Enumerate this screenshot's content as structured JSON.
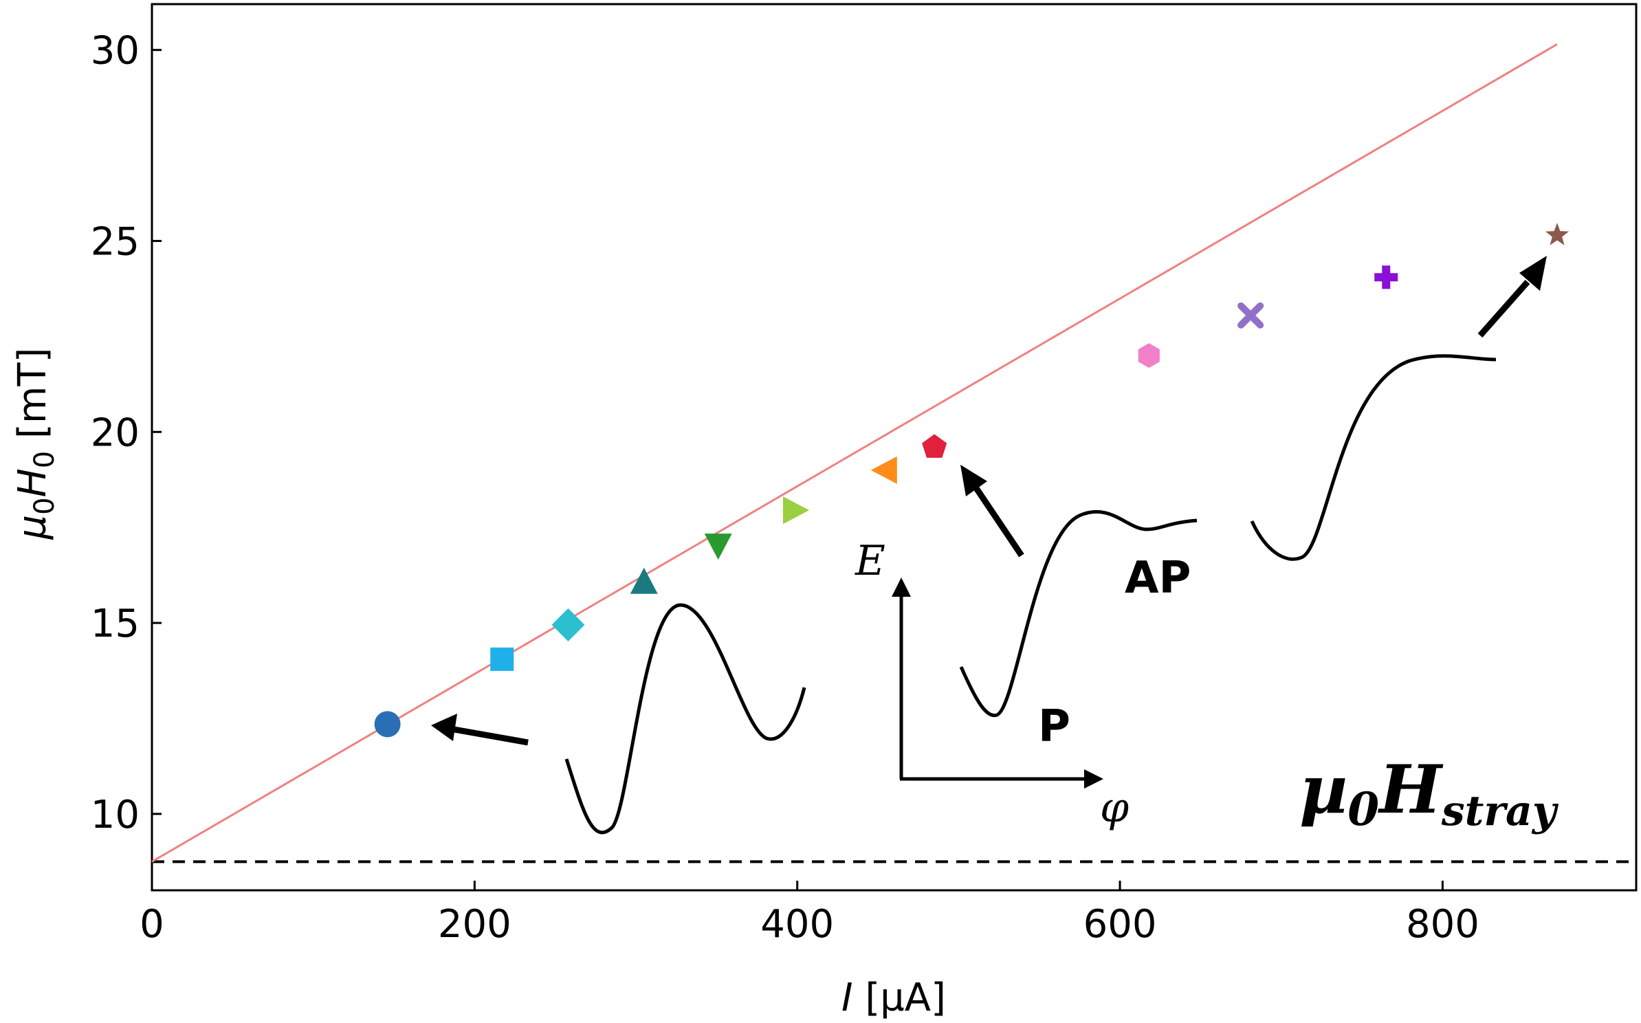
{
  "chart_data": {
    "type": "scatter",
    "title": "",
    "xlabel": "I [µA]",
    "ylabel": "µ0H0 [mT]",
    "xlim": [
      0,
      920
    ],
    "ylim": [
      8.0,
      31.2
    ],
    "x_ticks": [
      0,
      200,
      400,
      600,
      800
    ],
    "y_ticks": [
      10,
      15,
      20,
      25,
      30
    ],
    "grid": false,
    "points": [
      {
        "x": 146,
        "y": 12.35,
        "marker": "circle",
        "color": "#2a6fb5"
      },
      {
        "x": 217,
        "y": 14.05,
        "marker": "square",
        "color": "#1fb0ea"
      },
      {
        "x": 258,
        "y": 14.95,
        "marker": "diamond",
        "color": "#2bbfd0"
      },
      {
        "x": 305,
        "y": 16.05,
        "marker": "triangle-up",
        "color": "#1a7a80"
      },
      {
        "x": 351,
        "y": 17.05,
        "marker": "triangle-down",
        "color": "#2a9a30"
      },
      {
        "x": 398,
        "y": 17.95,
        "marker": "triangle-right",
        "color": "#9ad040"
      },
      {
        "x": 455,
        "y": 19.0,
        "marker": "triangle-left",
        "color": "#ff8c1a"
      },
      {
        "x": 485,
        "y": 19.6,
        "marker": "pentagon",
        "color": "#e0203c"
      },
      {
        "x": 618,
        "y": 22.0,
        "marker": "hexagon",
        "color": "#f080c8"
      },
      {
        "x": 681,
        "y": 23.05,
        "marker": "x",
        "color": "#9070c8"
      },
      {
        "x": 765,
        "y": 24.05,
        "marker": "plus",
        "color": "#8a10d8"
      },
      {
        "x": 871,
        "y": 25.15,
        "marker": "star",
        "color": "#8b5a4a"
      }
    ],
    "fit_line": {
      "x": [
        0,
        871
      ],
      "y": [
        8.75,
        30.15
      ],
      "color": "#f08080"
    },
    "stray_line": {
      "y": 8.75,
      "style": "dashed",
      "color": "#000000"
    },
    "annotations": {
      "stray": {
        "base": "µ",
        "sub1": "0",
        "mid": "H",
        "sub2": "stray"
      },
      "energy_axis": {
        "y_label": "E",
        "x_label": "φ"
      },
      "state_labels": {
        "P": "P",
        "AP": "AP"
      }
    }
  }
}
